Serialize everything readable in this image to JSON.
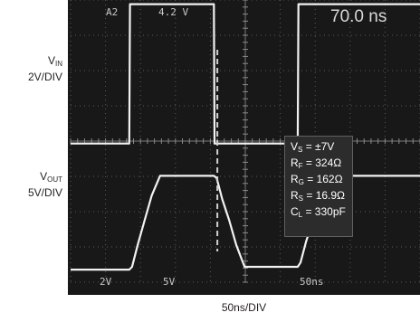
{
  "labels": {
    "vin_main": "V",
    "vin_sub": "IN",
    "vin_scale": "2V/DIV",
    "vout_main": "V",
    "vout_sub": "OUT",
    "vout_scale": "5V/DIV",
    "x_axis": "50ns/DIV"
  },
  "scope_readouts": {
    "top_channel": "A2",
    "top_level": "4.2 V",
    "top_delta": "70.0 ns",
    "ch1_scale": "2V",
    "ch2_scale": "5V",
    "timebase": "50ns"
  },
  "conditions": [
    {
      "main": "V",
      "sub": "S",
      "value": " = ±7V"
    },
    {
      "main": "R",
      "sub": "F",
      "value": " = 324Ω"
    },
    {
      "main": "R",
      "sub": "G",
      "value": " = 162Ω"
    },
    {
      "main": "R",
      "sub": "S",
      "value": " = 16.9Ω"
    },
    {
      "main": "C",
      "sub": "L",
      "value": " = 330pF"
    }
  ],
  "chart_data": {
    "type": "line",
    "x_units": "ns",
    "x_per_div": 50,
    "xlim": [
      0,
      500
    ],
    "series": [
      {
        "name": "VIN",
        "volts_per_div": 2,
        "x": [
          0,
          84,
          85,
          205,
          206,
          325,
          326,
          500
        ],
        "y": [
          -3.7,
          -3.7,
          4.2,
          4.2,
          -3.7,
          -3.7,
          4.2,
          4.2
        ]
      },
      {
        "name": "VOUT",
        "volts_per_div": 5,
        "x": [
          0,
          84,
          88,
          96,
          106,
          116,
          128,
          205,
          209,
          217,
          227,
          237,
          249,
          325,
          329,
          337,
          347,
          357,
          369,
          500
        ],
        "y": [
          -7,
          -7,
          -6.6,
          -3.5,
          0,
          3.5,
          6.3,
          6.3,
          6,
          3,
          0,
          -3.5,
          -6.6,
          -6.6,
          -6,
          -3,
          0,
          3.5,
          6.3,
          6.3
        ]
      }
    ],
    "cursor_x": 210,
    "grid": true
  }
}
